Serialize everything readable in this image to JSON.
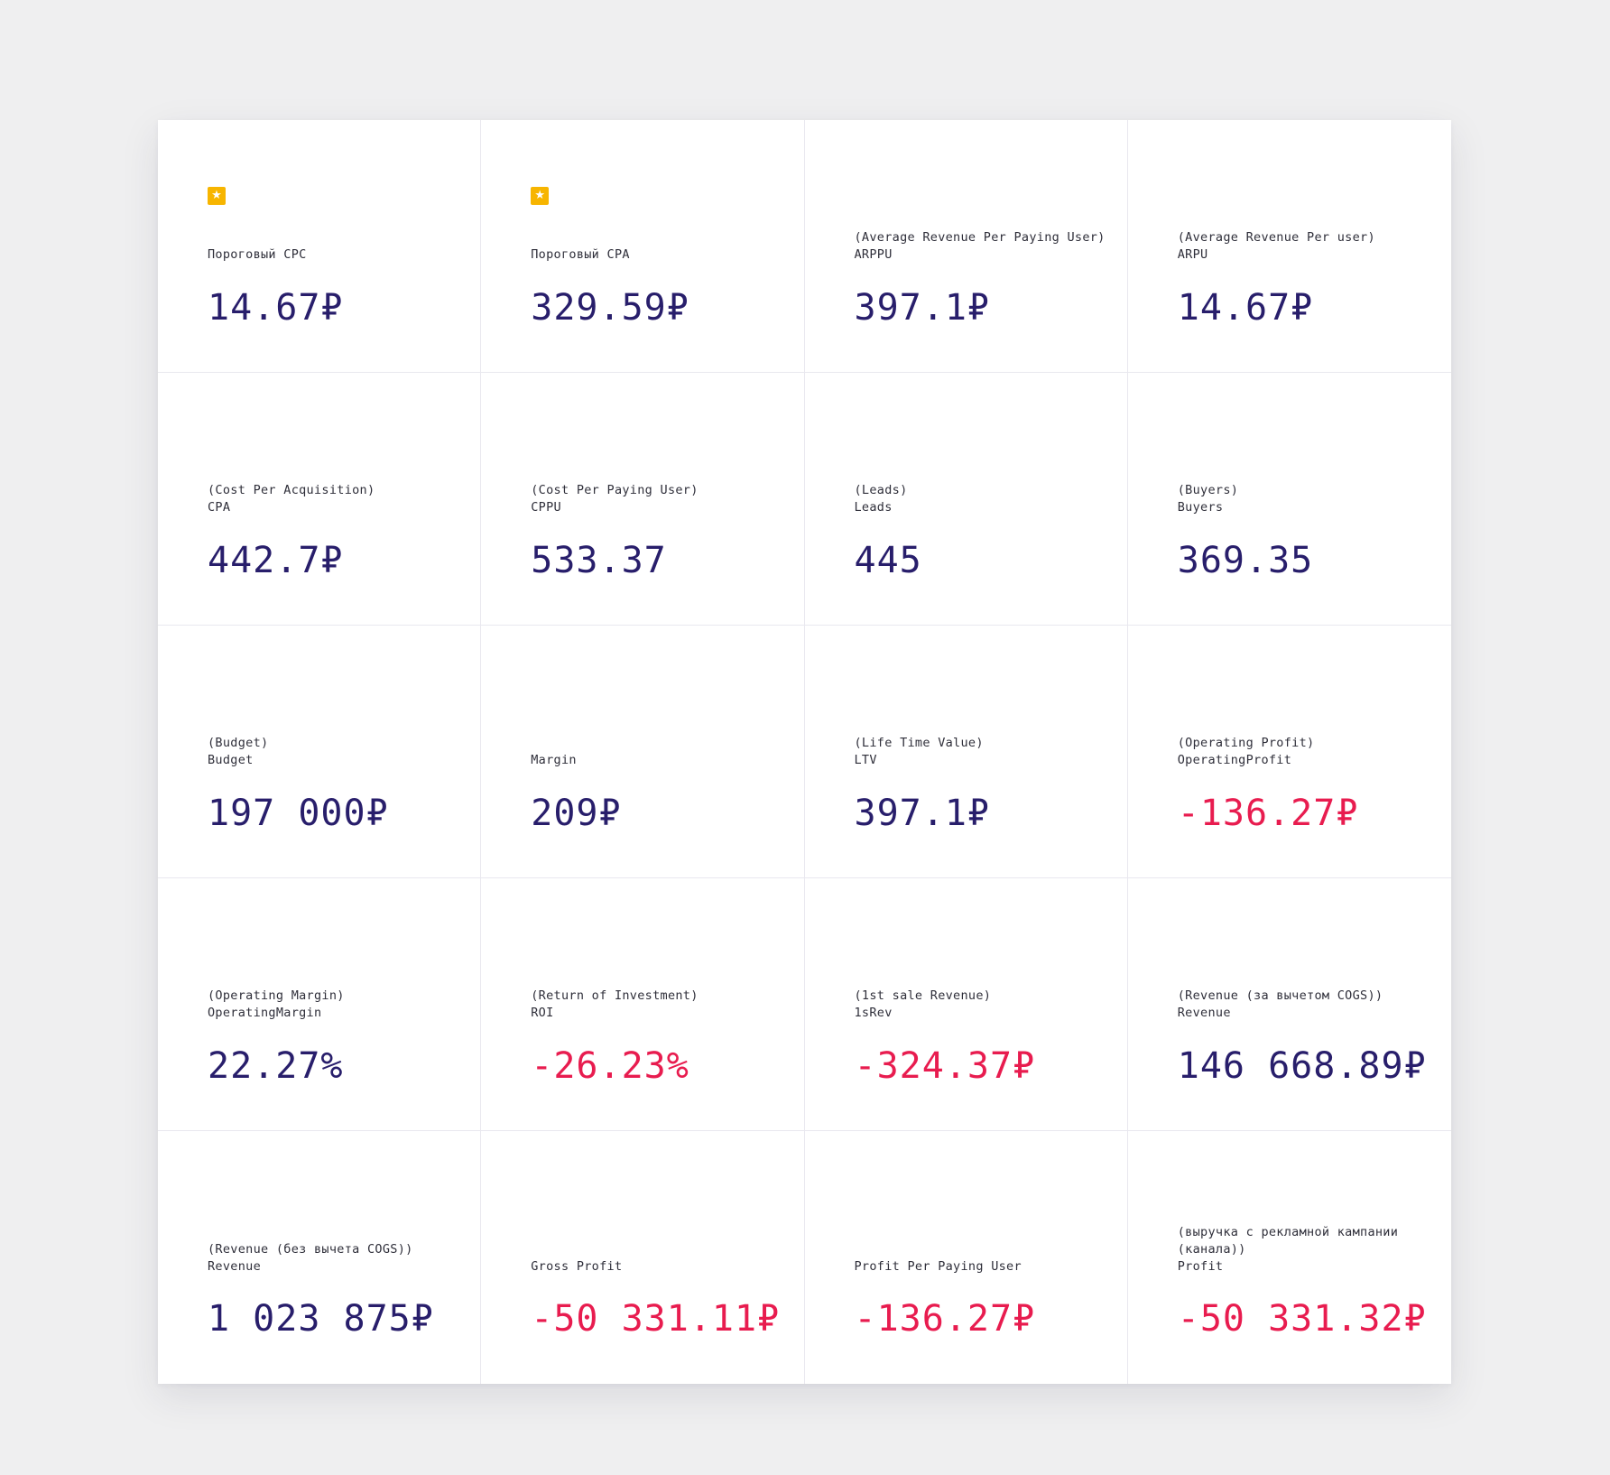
{
  "colors": {
    "background": "#efeff0",
    "value_positive": "#281e6b",
    "value_negative": "#e81c4f",
    "star_badge": "#f7b500"
  },
  "metrics": [
    {
      "starred": true,
      "subtitle": "",
      "label": "Пороговый CPC",
      "value": "14.67₽",
      "negative": false
    },
    {
      "starred": true,
      "subtitle": "",
      "label": "Пороговый CPA",
      "value": "329.59₽",
      "negative": false
    },
    {
      "starred": false,
      "subtitle": "(Average Revenue Per Paying User)",
      "label": "ARPPU",
      "value": "397.1₽",
      "negative": false
    },
    {
      "starred": false,
      "subtitle": "(Average Revenue Per user)",
      "label": "ARPU",
      "value": "14.67₽",
      "negative": false
    },
    {
      "starred": false,
      "subtitle": "(Cost Per Acquisition)",
      "label": "CPA",
      "value": "442.7₽",
      "negative": false
    },
    {
      "starred": false,
      "subtitle": "(Cost Per Paying User)",
      "label": "CPPU",
      "value": "533.37",
      "negative": false
    },
    {
      "starred": false,
      "subtitle": "(Leads)",
      "label": "Leads",
      "value": "445",
      "negative": false
    },
    {
      "starred": false,
      "subtitle": "(Buyers)",
      "label": "Buyers",
      "value": "369.35",
      "negative": false
    },
    {
      "starred": false,
      "subtitle": "(Budget)",
      "label": "Budget",
      "value": "197 000₽",
      "negative": false
    },
    {
      "starred": false,
      "subtitle": "",
      "label": "Margin",
      "value": "209₽",
      "negative": false
    },
    {
      "starred": false,
      "subtitle": "(Life Time Value)",
      "label": "LTV",
      "value": "397.1₽",
      "negative": false
    },
    {
      "starred": false,
      "subtitle": "(Operating Profit)",
      "label": "OperatingProfit",
      "value": "-136.27₽",
      "negative": true
    },
    {
      "starred": false,
      "subtitle": "(Operating Margin)",
      "label": "OperatingMargin",
      "value": "22.27%",
      "negative": false
    },
    {
      "starred": false,
      "subtitle": "(Return of Investment)",
      "label": "ROI",
      "value": "-26.23%",
      "negative": true
    },
    {
      "starred": false,
      "subtitle": "(1st sale Revenue)",
      "label": "1sRev",
      "value": "-324.37₽",
      "negative": true
    },
    {
      "starred": false,
      "subtitle": "(Revenue (за вычетом COGS))",
      "label": "Revenue",
      "value": "146 668.89₽",
      "negative": false
    },
    {
      "starred": false,
      "subtitle": "(Revenue (без вычета COGS))",
      "label": "Revenue",
      "value": "1 023 875₽",
      "negative": false
    },
    {
      "starred": false,
      "subtitle": "",
      "label": "Gross Profit",
      "value": "-50 331.11₽",
      "negative": true
    },
    {
      "starred": false,
      "subtitle": "",
      "label": "Profit Per Paying User",
      "value": "-136.27₽",
      "negative": true
    },
    {
      "starred": false,
      "subtitle": "(выручка с рекламной кампании (канала))",
      "label": "Profit",
      "value": "-50 331.32₽",
      "negative": true
    }
  ]
}
